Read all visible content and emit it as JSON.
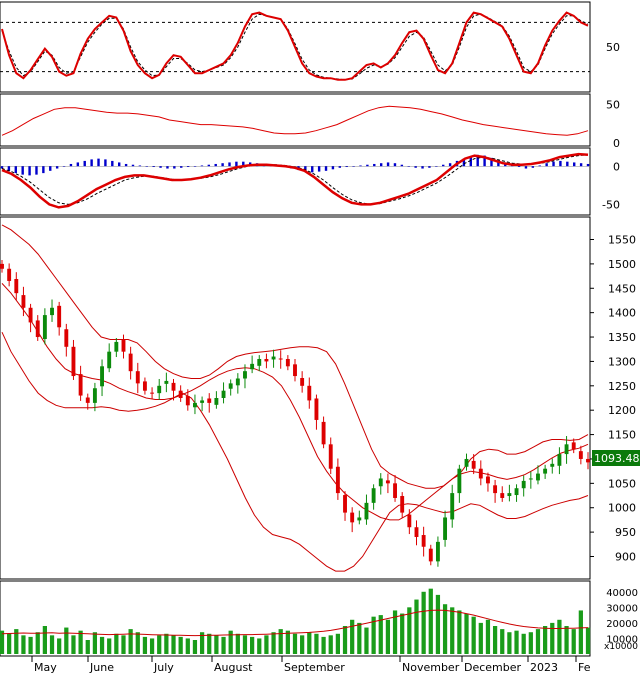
{
  "chart_data": [
    {
      "type": "line",
      "panel": "stochastic",
      "y_ticks": [
        "50"
      ],
      "ylim": [
        0,
        100
      ],
      "reference_lines": [
        80,
        20
      ],
      "series": [
        {
          "color": "#dd0000",
          "values": [
            72,
            40,
            18,
            12,
            22,
            35,
            48,
            38,
            20,
            15,
            18,
            42,
            60,
            72,
            80,
            88,
            86,
            70,
            45,
            28,
            18,
            12,
            16,
            30,
            40,
            38,
            28,
            18,
            18,
            22,
            26,
            30,
            40,
            55,
            75,
            90,
            92,
            88,
            86,
            84,
            70,
            50,
            30,
            18,
            14,
            12,
            12,
            10,
            10,
            12,
            20,
            28,
            30,
            25,
            30,
            40,
            55,
            68,
            70,
            60,
            40,
            22,
            18,
            30,
            55,
            80,
            92,
            90,
            85,
            80,
            75,
            60,
            40,
            20,
            18,
            30,
            52,
            70,
            82,
            92,
            88,
            80,
            76
          ]
        },
        {
          "color": "#000000",
          "style": "dashed",
          "values": [
            70,
            45,
            25,
            15,
            20,
            32,
            45,
            40,
            25,
            18,
            20,
            38,
            56,
            68,
            78,
            85,
            85,
            72,
            50,
            32,
            22,
            15,
            16,
            26,
            36,
            36,
            30,
            22,
            20,
            22,
            25,
            28,
            37,
            50,
            68,
            84,
            90,
            88,
            86,
            84,
            72,
            54,
            35,
            22,
            16,
            13,
            12,
            11,
            10,
            11,
            17,
            24,
            28,
            26,
            29,
            37,
            50,
            63,
            68,
            62,
            45,
            28,
            21,
            28,
            50,
            74,
            88,
            90,
            86,
            81,
            76,
            63,
            45,
            25,
            20,
            28,
            48,
            66,
            78,
            88,
            88,
            82,
            78
          ]
        }
      ]
    },
    {
      "type": "line",
      "panel": "oscillator",
      "y_ticks": [
        "50",
        "0"
      ],
      "ylim": [
        0,
        60
      ],
      "series": [
        {
          "color": "#dd0000",
          "values": [
            10,
            16,
            24,
            32,
            38,
            44,
            46,
            46,
            44,
            42,
            40,
            39,
            39,
            38,
            36,
            34,
            30,
            28,
            26,
            24,
            24,
            23,
            22,
            21,
            19,
            16,
            13,
            12,
            12,
            13,
            16,
            20,
            24,
            30,
            36,
            42,
            46,
            48,
            47,
            46,
            44,
            41,
            38,
            34,
            30,
            27,
            24,
            22,
            20,
            18,
            16,
            14,
            12,
            11,
            10,
            12,
            16
          ]
        }
      ]
    },
    {
      "type": "bar",
      "panel": "macd",
      "y_ticks": [
        "0",
        "-50"
      ],
      "ylim": [
        -60,
        20
      ],
      "histogram_color": "#0000cc",
      "histogram": [
        -3,
        -6,
        -9,
        -11,
        -12,
        -11,
        -9,
        -6,
        -3,
        0,
        3,
        5,
        7,
        9,
        10,
        9,
        7,
        5,
        3,
        2,
        1,
        0,
        -1,
        -2,
        -3,
        -3,
        -2,
        -1,
        0,
        1,
        2,
        3,
        4,
        5,
        6,
        6,
        5,
        4,
        3,
        2,
        1,
        -1,
        -3,
        -5,
        -7,
        -8,
        -7,
        -6,
        -4,
        -2,
        -1,
        0,
        1,
        2,
        3,
        4,
        5,
        4,
        2,
        0,
        -2,
        -3,
        -2,
        0,
        2,
        4,
        7,
        10,
        13,
        15,
        14,
        11,
        8,
        5,
        2,
        -1,
        -3,
        -2,
        1,
        4,
        6,
        7,
        6,
        5,
        4,
        3
      ],
      "series": [
        {
          "color": "#dd0000",
          "values": [
            -5,
            -10,
            -18,
            -28,
            -40,
            -50,
            -54,
            -52,
            -46,
            -38,
            -30,
            -24,
            -18,
            -14,
            -12,
            -12,
            -14,
            -16,
            -18,
            -18,
            -17,
            -15,
            -12,
            -8,
            -4,
            -1,
            1,
            2,
            2,
            1,
            0,
            -2,
            -6,
            -14,
            -24,
            -34,
            -42,
            -48,
            -50,
            -50,
            -48,
            -44,
            -40,
            -36,
            -30,
            -24,
            -18,
            -8,
            2,
            10,
            14,
            12,
            8,
            4,
            2,
            2,
            3,
            5,
            8,
            12,
            14,
            16,
            15
          ]
        },
        {
          "color": "#000000",
          "style": "dashed",
          "values": [
            -3,
            -7,
            -13,
            -21,
            -31,
            -41,
            -48,
            -50,
            -48,
            -43,
            -36,
            -30,
            -24,
            -18,
            -15,
            -13,
            -13,
            -15,
            -17,
            -18,
            -17,
            -16,
            -14,
            -11,
            -7,
            -3,
            0,
            2,
            2,
            2,
            1,
            -1,
            -4,
            -10,
            -18,
            -28,
            -37,
            -44,
            -48,
            -50,
            -49,
            -46,
            -43,
            -39,
            -34,
            -28,
            -22,
            -14,
            -5,
            4,
            10,
            12,
            10,
            7,
            4,
            3,
            3,
            4,
            6,
            9,
            12,
            14,
            15
          ]
        }
      ]
    },
    {
      "type": "candlestick",
      "panel": "price",
      "y_ticks": [
        "1550",
        "1500",
        "1450",
        "1400",
        "1350",
        "1300",
        "1250",
        "1200",
        "1150",
        "1100",
        "1050",
        "1000",
        "950",
        "900"
      ],
      "ylim": [
        860,
        1590
      ],
      "last_price_label": "1093.480",
      "up_color": "#0b8a0b",
      "down_color": "#dd0000",
      "close": [
        1490,
        1465,
        1440,
        1410,
        1380,
        1350,
        1395,
        1410,
        1370,
        1330,
        1270,
        1230,
        1215,
        1245,
        1290,
        1320,
        1340,
        1320,
        1280,
        1255,
        1240,
        1235,
        1250,
        1260,
        1240,
        1225,
        1210,
        1215,
        1220,
        1215,
        1225,
        1240,
        1255,
        1265,
        1280,
        1295,
        1305,
        1300,
        1310,
        1305,
        1290,
        1270,
        1250,
        1220,
        1180,
        1130,
        1080,
        1030,
        990,
        970,
        980,
        1010,
        1040,
        1060,
        1050,
        1020,
        990,
        960,
        940,
        920,
        890,
        930,
        980,
        1030,
        1080,
        1100,
        1080,
        1060,
        1050,
        1030,
        1020,
        1030,
        1040,
        1055,
        1060,
        1070,
        1080,
        1090,
        1110,
        1130,
        1120,
        1100,
        1093
      ],
      "bollinger": {
        "upper": [
          1580,
          1570,
          1555,
          1540,
          1520,
          1495,
          1470,
          1445,
          1420,
          1395,
          1370,
          1350,
          1345,
          1345,
          1345,
          1338,
          1320,
          1300,
          1285,
          1275,
          1268,
          1265,
          1265,
          1272,
          1285,
          1300,
          1310,
          1315,
          1318,
          1320,
          1322,
          1325,
          1328,
          1330,
          1330,
          1328,
          1320,
          1295,
          1255,
          1210,
          1165,
          1120,
          1085,
          1070,
          1060,
          1050,
          1045,
          1040,
          1040,
          1045,
          1060,
          1075,
          1100,
          1115,
          1120,
          1118,
          1110,
          1110,
          1115,
          1125,
          1135,
          1140,
          1140,
          1138,
          1140,
          1150
        ],
        "middle": [
          1460,
          1440,
          1415,
          1390,
          1360,
          1330,
          1305,
          1285,
          1275,
          1270,
          1265,
          1262,
          1255,
          1245,
          1238,
          1232,
          1225,
          1222,
          1222,
          1225,
          1232,
          1240,
          1250,
          1262,
          1272,
          1280,
          1285,
          1287,
          1285,
          1278,
          1268,
          1250,
          1220,
          1185,
          1145,
          1105,
          1075,
          1050,
          1030,
          1015,
          1000,
          990,
          980,
          975,
          975,
          985,
          1000,
          1015,
          1030,
          1045,
          1060,
          1070,
          1075,
          1072,
          1068,
          1062,
          1058,
          1062,
          1068,
          1078,
          1090,
          1102,
          1112,
          1118,
          1122,
          1130
        ],
        "lower": [
          1360,
          1320,
          1290,
          1260,
          1235,
          1220,
          1210,
          1205,
          1205,
          1205,
          1205,
          1207,
          1205,
          1200,
          1198,
          1200,
          1203,
          1208,
          1215,
          1225,
          1235,
          1225,
          1200,
          1170,
          1135,
          1100,
          1060,
          1020,
          985,
          960,
          945,
          940,
          935,
          925,
          910,
          895,
          880,
          870,
          870,
          880,
          900,
          930,
          960,
          990,
          1005,
          1008,
          1006,
          1000,
          995,
          990,
          992,
          1000,
          1008,
          1005,
          995,
          985,
          978,
          978,
          982,
          990,
          998,
          1005,
          1010,
          1015,
          1018,
          1025
        ]
      }
    },
    {
      "type": "bar",
      "panel": "volume",
      "y_ticks": [
        "40000",
        "30000",
        "20000",
        "10000"
      ],
      "y_unit": "x10000",
      "ylim": [
        0,
        45000
      ],
      "x_ticks": [
        "May",
        "June",
        "July",
        "August",
        "September",
        "November",
        "December",
        "2023",
        "Fe"
      ],
      "volume": [
        15000,
        13000,
        16000,
        12000,
        11000,
        14000,
        18000,
        12000,
        10000,
        17000,
        12000,
        15000,
        9000,
        14000,
        11000,
        10000,
        13000,
        12000,
        16000,
        14000,
        11000,
        10000,
        12000,
        13000,
        12000,
        11000,
        10000,
        9000,
        14000,
        13000,
        12000,
        11000,
        15000,
        13000,
        12000,
        11000,
        10000,
        12000,
        14000,
        16000,
        15000,
        13000,
        12000,
        14000,
        13000,
        11000,
        12000,
        13000,
        18000,
        22000,
        20000,
        17000,
        24000,
        25000,
        22000,
        28000,
        26000,
        30000,
        35000,
        40000,
        42000,
        38000,
        32000,
        30000,
        28000,
        26000,
        24000,
        20000,
        22000,
        18000,
        16000,
        14000,
        15000,
        13000,
        14000,
        16000,
        18000,
        20000,
        22000,
        18000,
        16000,
        28000,
        17000
      ],
      "volume_ma": [
        13000,
        13200,
        13400,
        13500,
        13400,
        13300,
        13500,
        13600,
        13400,
        13500,
        13300,
        13200,
        13000,
        12800,
        12600,
        12500,
        12600,
        12700,
        12900,
        12800,
        12600,
        12400,
        12300,
        12200,
        12100,
        12000,
        11900,
        11800,
        11900,
        12000,
        12100,
        12200,
        12300,
        12400,
        12500,
        12500,
        12600,
        12700,
        12900,
        13100,
        13300,
        13500,
        13700,
        13900,
        14200,
        14600,
        15200,
        16000,
        16900,
        17800,
        18800,
        19800,
        20800,
        21800,
        22800,
        23800,
        24800,
        25800,
        26800,
        27500,
        28000,
        28200,
        28000,
        27500,
        26800,
        26000,
        25000,
        23800,
        22600,
        21400,
        20300,
        19300,
        18400,
        17700,
        17200,
        16800,
        16500,
        16400,
        16400,
        16500,
        16600,
        16800,
        17000
      ]
    }
  ]
}
